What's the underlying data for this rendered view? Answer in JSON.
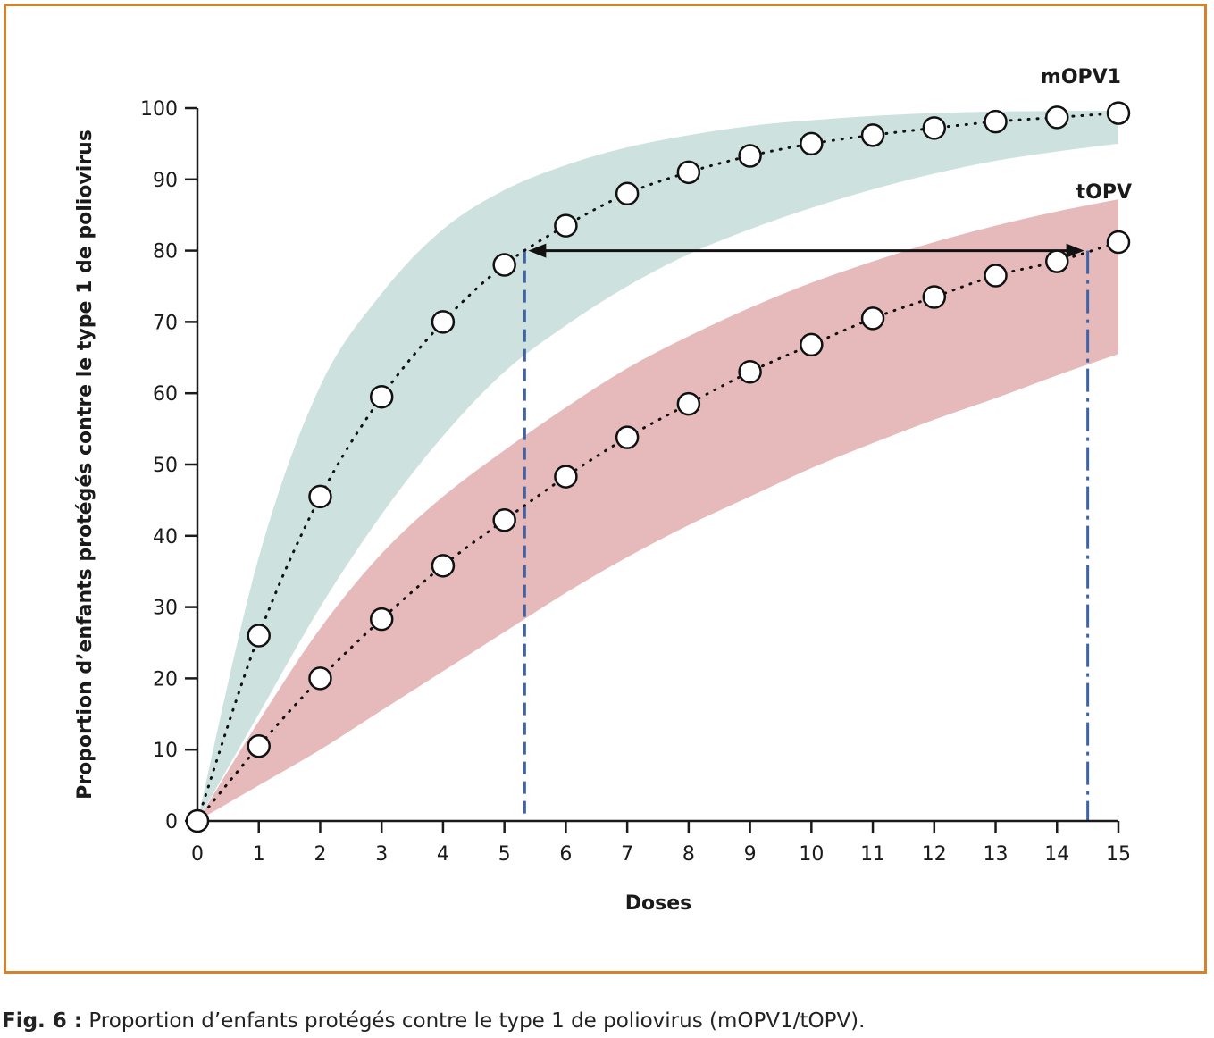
{
  "caption": {
    "prefix": "Fig. 6 :",
    "text": " Proportion d’enfants protégés contre le type 1 de poliovirus (mOPV1/tOPV)."
  },
  "colors": {
    "frame": "#d4822e",
    "mopv1_band": "#cde2de",
    "topv_band": "#e6babb",
    "marker_line": "#3f63a8",
    "arrow": "#111111"
  },
  "chart_data": {
    "type": "line",
    "xlabel": "Doses",
    "ylabel": "Proportion d’enfants protégés contre le type 1 de poliovirus",
    "xlim": [
      0,
      15
    ],
    "ylim": [
      0,
      100
    ],
    "x_ticks": [
      "0",
      "1",
      "2",
      "3",
      "4",
      "5",
      "6",
      "7",
      "8",
      "9",
      "10",
      "11",
      "12",
      "13",
      "14",
      "15"
    ],
    "y_ticks": [
      "0",
      "10",
      "20",
      "30",
      "40",
      "50",
      "60",
      "70",
      "80",
      "90",
      "100"
    ],
    "x": [
      0,
      1,
      2,
      3,
      4,
      5,
      6,
      7,
      8,
      9,
      10,
      11,
      12,
      13,
      14,
      15
    ],
    "series": [
      {
        "name": "mOPV1",
        "values": [
          0,
          26,
          45.5,
          59.5,
          70,
          78,
          83.5,
          88,
          91,
          93.3,
          95,
          96.2,
          97.2,
          98.1,
          98.7,
          99.3
        ],
        "band_upper": [
          0,
          37,
          61,
          74,
          83,
          88.5,
          92,
          94.5,
          96.2,
          97.5,
          98.3,
          98.9,
          99.3,
          99.5,
          99.6,
          99.6
        ],
        "band_lower": [
          0,
          15,
          30,
          43,
          54,
          63,
          69.5,
          75,
          79.5,
          83,
          86,
          88.6,
          90.8,
          92.6,
          93.9,
          95
        ]
      },
      {
        "name": "tOPV",
        "values": [
          0,
          10.5,
          20,
          28.3,
          35.8,
          42.2,
          48.3,
          53.8,
          58.5,
          63,
          66.8,
          70.5,
          73.5,
          76.5,
          78.5,
          81.2
        ],
        "band_upper": [
          0,
          14,
          27,
          37.5,
          45.5,
          52,
          58,
          63.5,
          68,
          72,
          75.5,
          78.5,
          81.2,
          83.5,
          85.5,
          87.2
        ],
        "band_lower": [
          0,
          5,
          10,
          15.5,
          21,
          26.5,
          32,
          37,
          41.5,
          45.5,
          49.5,
          53,
          56.3,
          59.3,
          62.5,
          65.5
        ]
      }
    ],
    "reference": {
      "level": 80,
      "x_mopv1": 5.33,
      "x_topv": 14.5
    },
    "grid": false
  }
}
